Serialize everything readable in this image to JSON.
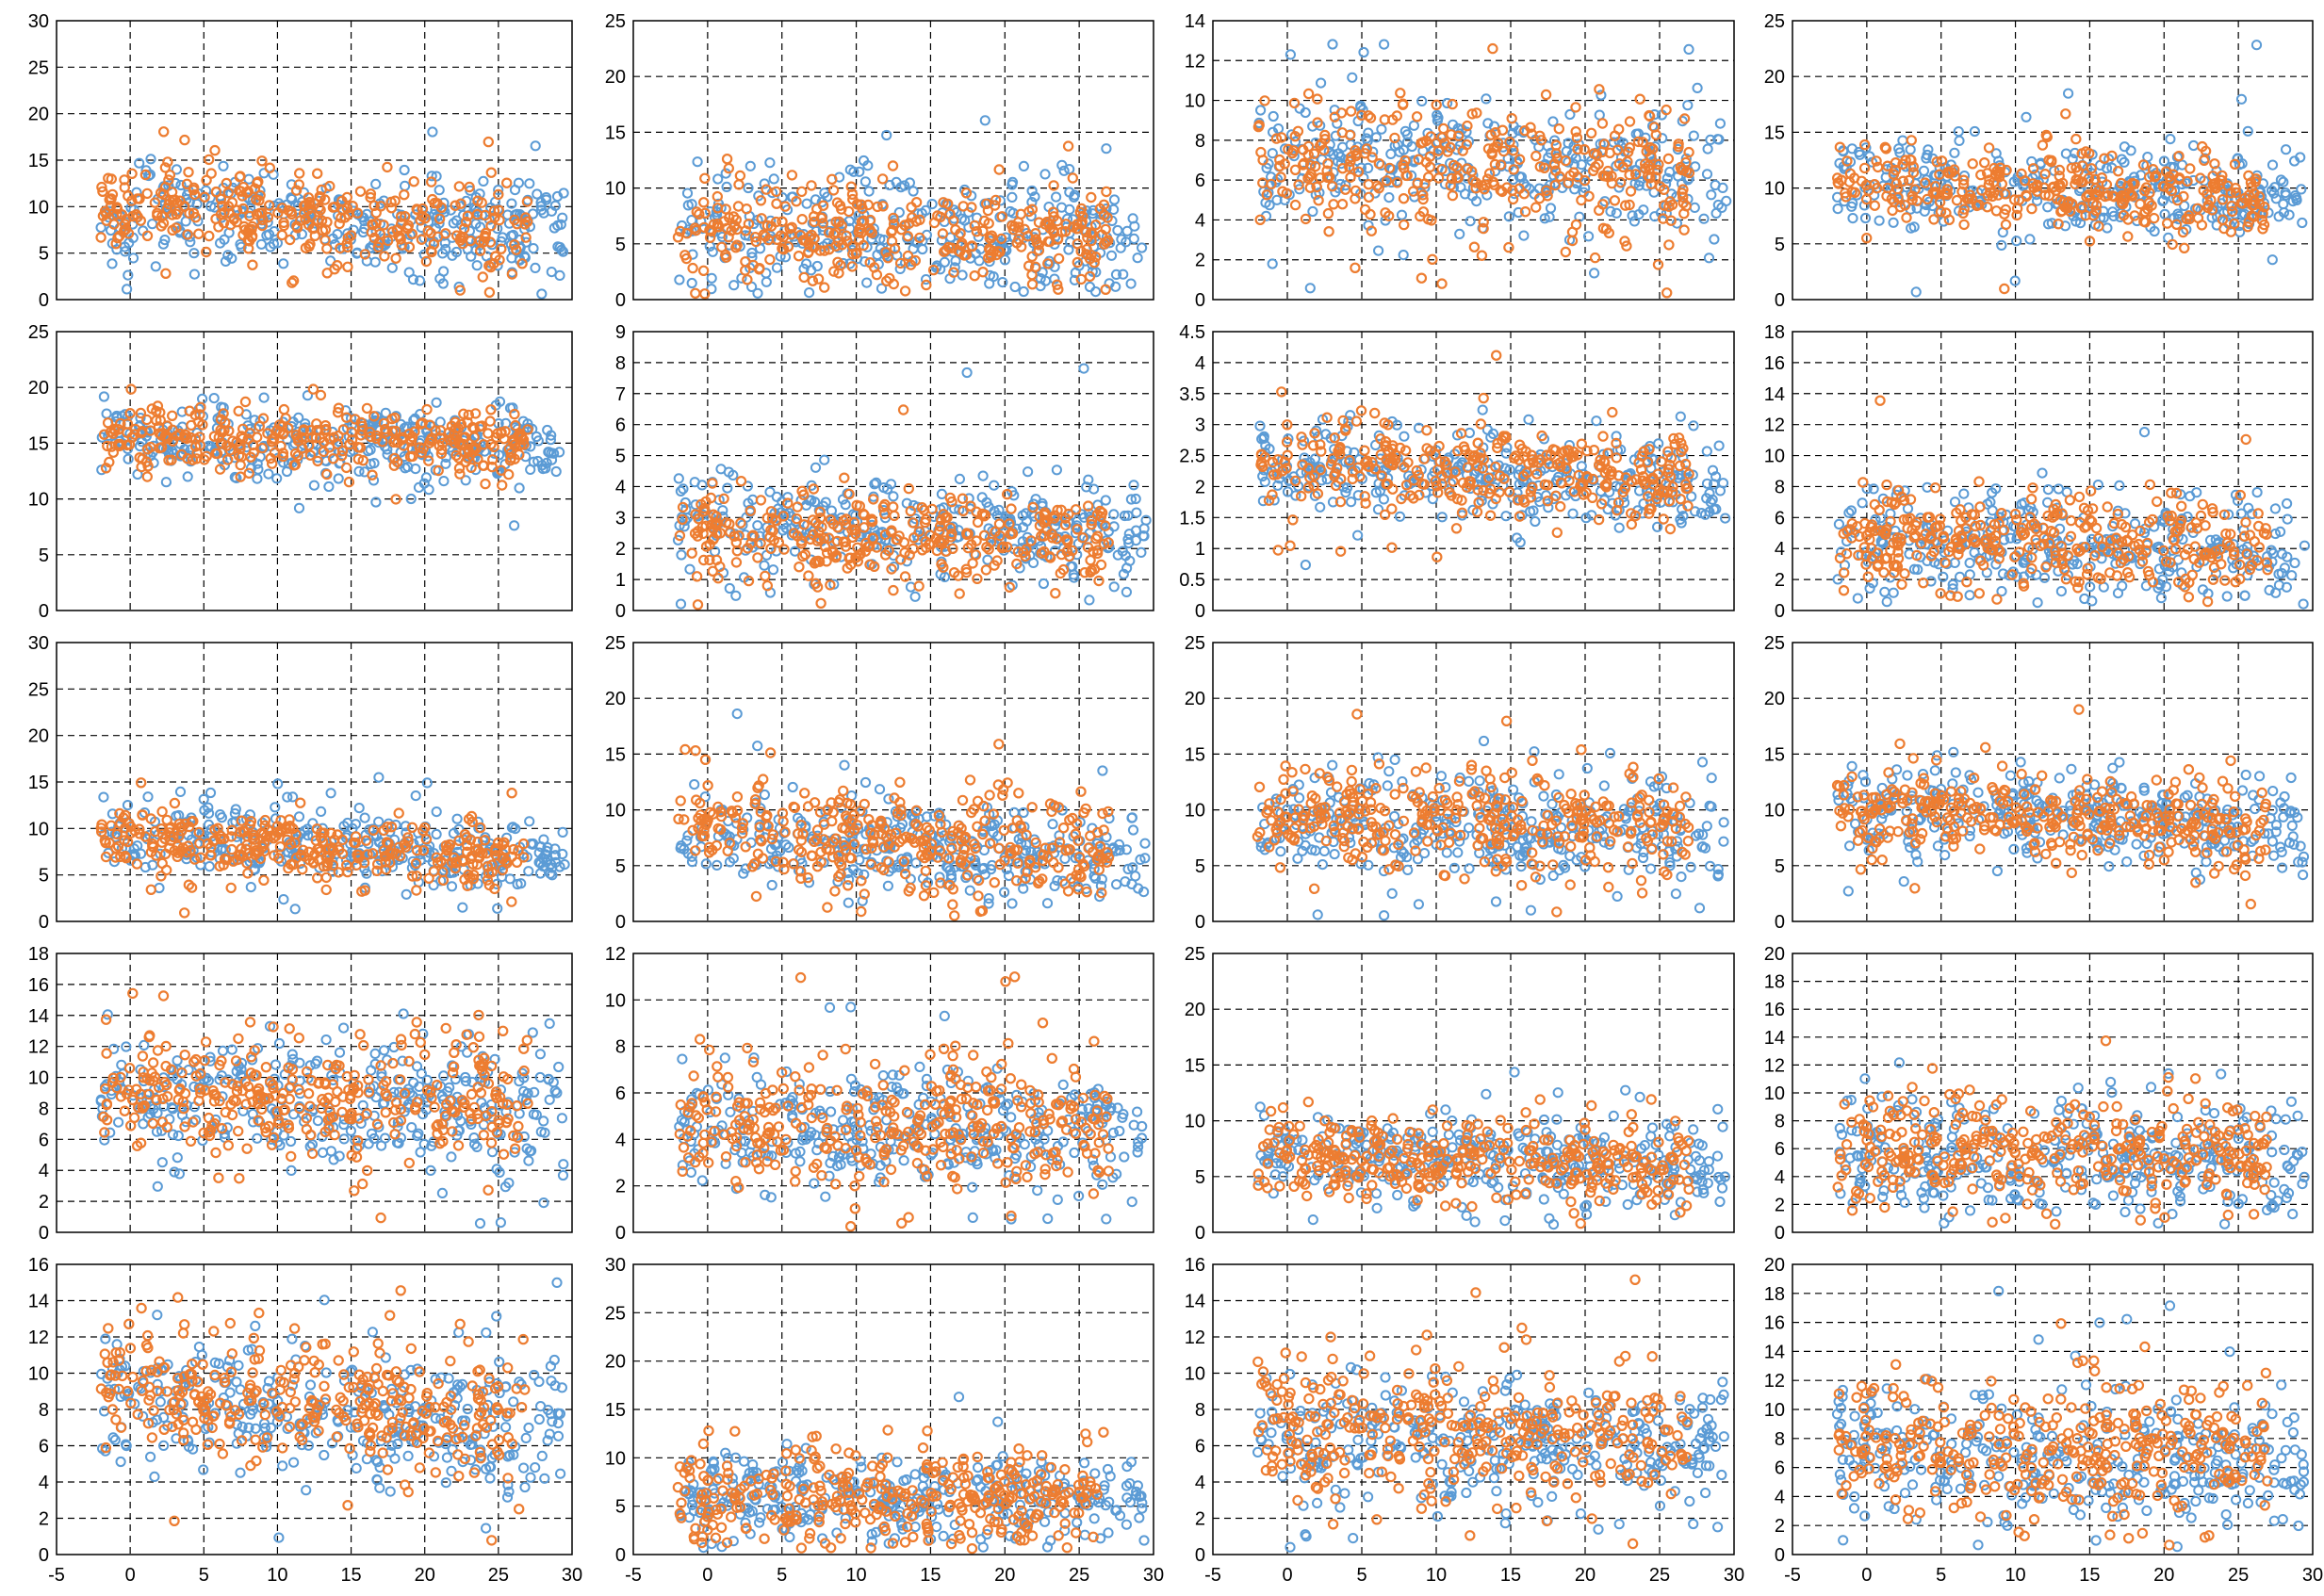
{
  "colors": {
    "series_a": "#5b9bd5",
    "series_b": "#ed7d31",
    "grid": "#000000",
    "frame": "#000000"
  },
  "chart_data": [
    {
      "type": "scatter",
      "row": 1,
      "col": 1,
      "xlim": [
        -5,
        30
      ],
      "ylim": [
        0,
        30
      ],
      "y_ticks": [
        "0",
        "5",
        "10",
        "15",
        "20",
        "25",
        "30"
      ],
      "x_ticks": [],
      "series_a": {
        "center": 9,
        "spread": 3.5,
        "trend": -0.08
      },
      "series_b": {
        "center": 9,
        "spread": 3.2,
        "trend": -0.08
      }
    },
    {
      "type": "scatter",
      "row": 1,
      "col": 2,
      "xlim": [
        -5,
        30
      ],
      "ylim": [
        0,
        25
      ],
      "y_ticks": [
        "0",
        "5",
        "10",
        "15",
        "20",
        "25"
      ],
      "x_ticks": [],
      "series_a": {
        "center": 6,
        "spread": 3.2,
        "trend": -0.02
      },
      "series_b": {
        "center": 6,
        "spread": 2.8,
        "trend": -0.02
      }
    },
    {
      "type": "scatter",
      "row": 1,
      "col": 3,
      "xlim": [
        -5,
        30
      ],
      "ylim": [
        0,
        14
      ],
      "y_ticks": [
        "0",
        "2",
        "4",
        "6",
        "8",
        "10",
        "12",
        "14"
      ],
      "x_ticks": [],
      "series_a": {
        "center": 6.5,
        "spread": 2.2,
        "trend": -0.02
      },
      "series_b": {
        "center": 6.8,
        "spread": 2.4,
        "trend": -0.03
      }
    },
    {
      "type": "scatter",
      "row": 1,
      "col": 4,
      "xlim": [
        -5,
        30
      ],
      "ylim": [
        0,
        25
      ],
      "y_ticks": [
        "0",
        "5",
        "10",
        "15",
        "20",
        "25"
      ],
      "x_ticks": [],
      "series_a": {
        "center": 10,
        "spread": 2.8,
        "trend": -0.06
      },
      "series_b": {
        "center": 10,
        "spread": 2.4,
        "trend": -0.06
      }
    },
    {
      "type": "scatter",
      "row": 2,
      "col": 1,
      "xlim": [
        -5,
        30
      ],
      "ylim": [
        0,
        25
      ],
      "y_ticks": [
        "0",
        "5",
        "10",
        "15",
        "20",
        "25"
      ],
      "x_ticks": [],
      "series_a": {
        "center": 15,
        "spread": 2.2,
        "trend": -0.02
      },
      "series_b": {
        "center": 15.5,
        "spread": 1.8,
        "trend": -0.02
      }
    },
    {
      "type": "scatter",
      "row": 2,
      "col": 2,
      "xlim": [
        -5,
        30
      ],
      "ylim": [
        0,
        9
      ],
      "y_ticks": [
        "0",
        "1",
        "2",
        "3",
        "4",
        "5",
        "6",
        "7",
        "8",
        "9"
      ],
      "x_ticks": [],
      "series_a": {
        "center": 2.7,
        "spread": 1.0,
        "trend": -0.01
      },
      "series_b": {
        "center": 2.4,
        "spread": 0.9,
        "trend": -0.01
      }
    },
    {
      "type": "scatter",
      "row": 2,
      "col": 3,
      "xlim": [
        -5,
        30
      ],
      "ylim": [
        0,
        4.5
      ],
      "y_ticks": [
        "0",
        "0.5",
        "1",
        "1.5",
        "2",
        "2.5",
        "3",
        "3.5",
        "4",
        "4.5"
      ],
      "x_ticks": [],
      "series_a": {
        "center": 2.2,
        "spread": 0.45,
        "trend": -0.012
      },
      "series_b": {
        "center": 2.3,
        "spread": 0.45,
        "trend": -0.012
      }
    },
    {
      "type": "scatter",
      "row": 2,
      "col": 4,
      "xlim": [
        -5,
        30
      ],
      "ylim": [
        0,
        18
      ],
      "y_ticks": [
        "0",
        "2",
        "4",
        "6",
        "8",
        "10",
        "12",
        "14",
        "16",
        "18"
      ],
      "x_ticks": [],
      "series_a": {
        "center": 4.2,
        "spread": 2.2,
        "trend": -0.03
      },
      "series_b": {
        "center": 4.5,
        "spread": 2.0,
        "trend": -0.03
      }
    },
    {
      "type": "scatter",
      "row": 3,
      "col": 1,
      "xlim": [
        -5,
        30
      ],
      "ylim": [
        0,
        30
      ],
      "y_ticks": [
        "0",
        "5",
        "10",
        "15",
        "20",
        "25",
        "30"
      ],
      "x_ticks": [],
      "series_a": {
        "center": 8.5,
        "spread": 2.6,
        "trend": -0.08
      },
      "series_b": {
        "center": 8.2,
        "spread": 2.3,
        "trend": -0.08
      }
    },
    {
      "type": "scatter",
      "row": 3,
      "col": 2,
      "xlim": [
        -5,
        30
      ],
      "ylim": [
        0,
        25
      ],
      "y_ticks": [
        "0",
        "5",
        "10",
        "15",
        "20",
        "25"
      ],
      "x_ticks": [],
      "series_a": {
        "center": 7,
        "spread": 2.5,
        "trend": -0.06
      },
      "series_b": {
        "center": 7.5,
        "spread": 3.0,
        "trend": -0.08
      }
    },
    {
      "type": "scatter",
      "row": 3,
      "col": 3,
      "xlim": [
        -5,
        30
      ],
      "ylim": [
        0,
        25
      ],
      "y_ticks": [
        "0",
        "5",
        "10",
        "15",
        "20",
        "25"
      ],
      "x_ticks": [],
      "series_a": {
        "center": 8.5,
        "spread": 3.2,
        "trend": -0.05
      },
      "series_b": {
        "center": 9,
        "spread": 3.0,
        "trend": -0.05
      }
    },
    {
      "type": "scatter",
      "row": 3,
      "col": 4,
      "xlim": [
        -5,
        30
      ],
      "ylim": [
        0,
        25
      ],
      "y_ticks": [
        "0",
        "5",
        "10",
        "15",
        "20",
        "25"
      ],
      "x_ticks": [],
      "series_a": {
        "center": 9.5,
        "spread": 2.8,
        "trend": -0.05
      },
      "series_b": {
        "center": 9.5,
        "spread": 2.6,
        "trend": -0.05
      }
    },
    {
      "type": "scatter",
      "row": 4,
      "col": 1,
      "xlim": [
        -5,
        30
      ],
      "ylim": [
        0,
        18
      ],
      "y_ticks": [
        "0",
        "2",
        "4",
        "6",
        "8",
        "10",
        "12",
        "14",
        "16",
        "18"
      ],
      "x_ticks": [],
      "series_a": {
        "center": 8.5,
        "spread": 2.8,
        "trend": -0.02
      },
      "series_b": {
        "center": 8.8,
        "spread": 2.6,
        "trend": -0.02
      }
    },
    {
      "type": "scatter",
      "row": 4,
      "col": 2,
      "xlim": [
        -5,
        30
      ],
      "ylim": [
        0,
        12
      ],
      "y_ticks": [
        "0",
        "2",
        "4",
        "6",
        "8",
        "10",
        "12"
      ],
      "x_ticks": [],
      "series_a": {
        "center": 4.5,
        "spread": 1.6,
        "trend": -0.01
      },
      "series_b": {
        "center": 4.8,
        "spread": 1.7,
        "trend": -0.01
      }
    },
    {
      "type": "scatter",
      "row": 4,
      "col": 3,
      "xlim": [
        -5,
        30
      ],
      "ylim": [
        0,
        25
      ],
      "y_ticks": [
        "0",
        "5",
        "10",
        "15",
        "20",
        "25"
      ],
      "x_ticks": [],
      "series_a": {
        "center": 6.5,
        "spread": 2.5,
        "trend": -0.03
      },
      "series_b": {
        "center": 6.8,
        "spread": 2.4,
        "trend": -0.03
      }
    },
    {
      "type": "scatter",
      "row": 4,
      "col": 4,
      "xlim": [
        -5,
        30
      ],
      "ylim": [
        0,
        20
      ],
      "y_ticks": [
        "0",
        "2",
        "4",
        "6",
        "8",
        "10",
        "12",
        "14",
        "16",
        "18",
        "20"
      ],
      "x_ticks": [],
      "series_a": {
        "center": 5.5,
        "spread": 2.6,
        "trend": -0.02
      },
      "series_b": {
        "center": 6,
        "spread": 2.6,
        "trend": -0.02
      }
    },
    {
      "type": "scatter",
      "row": 5,
      "col": 1,
      "xlim": [
        -5,
        30
      ],
      "ylim": [
        0,
        16
      ],
      "y_ticks": [
        "0",
        "2",
        "4",
        "6",
        "8",
        "10",
        "12",
        "14",
        "16"
      ],
      "x_ticks": [
        "-5",
        "0",
        "5",
        "10",
        "15",
        "20",
        "25",
        "30"
      ],
      "series_a": {
        "center": 8,
        "spread": 2.4,
        "trend": -0.06
      },
      "series_b": {
        "center": 8.6,
        "spread": 2.2,
        "trend": -0.06
      }
    },
    {
      "type": "scatter",
      "row": 5,
      "col": 2,
      "xlim": [
        -5,
        30
      ],
      "ylim": [
        0,
        30
      ],
      "y_ticks": [
        "0",
        "5",
        "10",
        "15",
        "20",
        "25",
        "30"
      ],
      "x_ticks": [
        "-5",
        "0",
        "5",
        "10",
        "15",
        "20",
        "25",
        "30"
      ],
      "series_a": {
        "center": 6,
        "spread": 3.0,
        "trend": 0.0
      },
      "series_b": {
        "center": 6,
        "spread": 3.2,
        "trend": 0.0
      }
    },
    {
      "type": "scatter",
      "row": 5,
      "col": 3,
      "xlim": [
        -5,
        30
      ],
      "ylim": [
        0,
        16
      ],
      "y_ticks": [
        "0",
        "2",
        "4",
        "6",
        "8",
        "10",
        "12",
        "14",
        "16"
      ],
      "x_ticks": [
        "-5",
        "0",
        "5",
        "10",
        "15",
        "20",
        "25",
        "30"
      ],
      "series_a": {
        "center": 6.2,
        "spread": 2.2,
        "trend": -0.02
      },
      "series_b": {
        "center": 6.8,
        "spread": 2.4,
        "trend": -0.02
      }
    },
    {
      "type": "scatter",
      "row": 5,
      "col": 4,
      "xlim": [
        -5,
        30
      ],
      "ylim": [
        0,
        20
      ],
      "y_ticks": [
        "0",
        "2",
        "4",
        "6",
        "8",
        "10",
        "12",
        "14",
        "16",
        "18",
        "20"
      ],
      "x_ticks": [
        "-5",
        "0",
        "5",
        "10",
        "15",
        "20",
        "25",
        "30"
      ],
      "series_a": {
        "center": 7,
        "spread": 3.0,
        "trend": -0.04
      },
      "series_b": {
        "center": 7.2,
        "spread": 3.2,
        "trend": -0.04
      }
    }
  ]
}
